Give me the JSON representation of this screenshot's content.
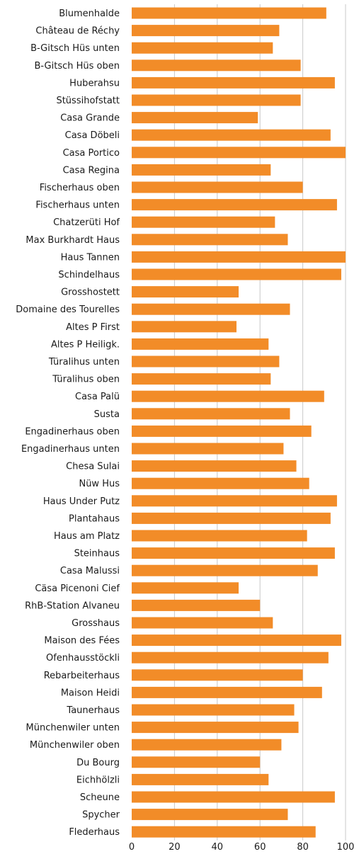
{
  "chart_data": {
    "type": "bar",
    "orientation": "horizontal",
    "title": "",
    "xlabel": "",
    "ylabel": "",
    "xlim": [
      0,
      100
    ],
    "x_ticks": [
      0,
      20,
      40,
      60,
      80,
      100
    ],
    "grid": "vertical",
    "bar_color": "#F28C28",
    "categories": [
      "Blumenhalde",
      "Château de Réchy",
      "B-Gitsch Hüs unten",
      "B-Gitsch Hüs oben",
      "Huberahsu",
      "Stüssihofstatt",
      "Casa Grande",
      "Casa Döbeli",
      "Casa Portico",
      "Casa Regina",
      "Fischerhaus oben",
      "Fischerhaus unten",
      "Chatzerüti Hof",
      "Max Burkhardt Haus",
      "Haus Tannen",
      "Schindelhaus",
      "Grosshostett",
      "Domaine des Tourelles",
      "Altes P First",
      "Altes P Heiligk.",
      "Türalihus unten",
      "Türalihus oben",
      "Casa Palü",
      "Susta",
      "Engadinerhaus oben",
      "Engadinerhaus unten",
      "Chesa Sulai",
      "Nüw Hus",
      "Haus Under Putz",
      "Plantahaus",
      "Haus am Platz",
      "Steinhaus",
      "Casa Malussi",
      "Cäsa Picenoni Cief",
      "RhB-Station Alvaneu",
      "Grosshaus",
      "Maison des Fées",
      "Ofenhausstöckli",
      "Rebarbeiterhaus",
      "Maison Heidi",
      "Taunerhaus",
      "Münchenwiler unten",
      "Münchenwiler oben",
      "Du Bourg",
      "Eichhölzli",
      "Scheune",
      "Spycher",
      "Flederhaus"
    ],
    "values": [
      91,
      69,
      66,
      79,
      95,
      79,
      59,
      93,
      100,
      65,
      80,
      96,
      67,
      73,
      100,
      98,
      50,
      74,
      49,
      64,
      69,
      65,
      90,
      74,
      84,
      71,
      77,
      83,
      96,
      93,
      82,
      95,
      87,
      50,
      60,
      66,
      98,
      92,
      80,
      89,
      76,
      78,
      70,
      60,
      64,
      95,
      73,
      86
    ]
  }
}
